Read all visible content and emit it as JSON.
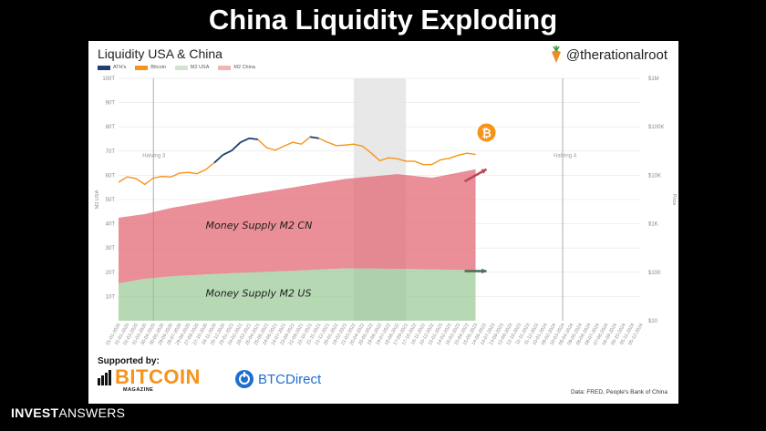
{
  "slide": {
    "title": "China Liquidity Exploding"
  },
  "header": {
    "handle": "@therationalroot"
  },
  "footer": {
    "supported_by": "Supported by:",
    "bitcoin_logo_main": "BITCOIN",
    "bitcoin_logo_sub": "MAGAZINE",
    "btcdirect_logo": "BTCDirect",
    "source": "Data: FRED, People's Bank of China",
    "brand_bold": "INVEST",
    "brand_light": "ANSWERS"
  },
  "colors": {
    "ath": "#1f3f73",
    "bitcoin": "#f7931a",
    "m2_usa": "#8fc48c",
    "m2_china": "#e2626f",
    "halving_shade": "#d9d9d9",
    "arrow_china": "#b5485d",
    "arrow_usa": "#4d6b57"
  },
  "chart_data": {
    "type": "area",
    "title": "Liquidity USA & China",
    "legend": [
      "ATH's",
      "Bitcoin",
      "M2 USA",
      "M2 China"
    ],
    "legend_position": "top-left",
    "ylabel_left": "M2 USA",
    "ylabel_right": "Price",
    "left_ticks": [
      "10T",
      "20T",
      "30T",
      "40T",
      "50T",
      "60T",
      "70T",
      "80T",
      "90T",
      "100T"
    ],
    "ylim_left": [
      0,
      100
    ],
    "right_ticks": [
      "$10",
      "$100",
      "$1K",
      "$10K",
      "$100K",
      "$1M"
    ],
    "ylim_right_log10": [
      1,
      6
    ],
    "grid": true,
    "x_dates": [
      "01-01-2020",
      "31-01-2020",
      "01-03-2020",
      "31-03-2020",
      "30-04-2020",
      "30-05-2020",
      "29-06-2020",
      "29-07-2020",
      "28-08-2020",
      "27-09-2020",
      "27-10-2020",
      "26-11-2020",
      "26-12-2020",
      "25-01-2021",
      "24-02-2021",
      "26-03-2021",
      "25-04-2021",
      "25-05-2021",
      "24-06-2021",
      "24-07-2021",
      "23-08-2021",
      "22-09-2021",
      "22-10-2021",
      "21-11-2021",
      "21-12-2021",
      "20-01-2022",
      "19-02-2022",
      "21-03-2022",
      "20-04-2022",
      "20-05-2022",
      "19-06-2022",
      "19-07-2022",
      "18-08-2022",
      "17-09-2022",
      "17-10-2022",
      "16-11-2022",
      "16-12-2022",
      "15-01-2023",
      "14-02-2023",
      "16-03-2023",
      "15-04-2023",
      "15-05-2023",
      "14-06-2023",
      "14-07-2023",
      "13-08-2023",
      "12-09-2023",
      "12-10-2023",
      "11-11-2023",
      "11-12-2023",
      "10-01-2024",
      "09-02-2024",
      "10-03-2024",
      "09-04-2024",
      "09-05-2024",
      "08-06-2024",
      "08-07-2024",
      "07-08-2024",
      "06-09-2024",
      "06-10-2024",
      "05-11-2024",
      "05-12-2024"
    ],
    "data_end_index": 41,
    "series": [
      {
        "name": "M2 USA",
        "index": [
          0,
          3,
          6,
          10,
          14,
          20,
          26,
          32,
          36,
          41
        ],
        "values": [
          15.4,
          17.3,
          18.3,
          19.1,
          19.8,
          20.6,
          21.6,
          21.4,
          21.2,
          20.8
        ]
      },
      {
        "name": "M2 China",
        "index": [
          0,
          3,
          6,
          10,
          14,
          20,
          26,
          32,
          36,
          41
        ],
        "values": [
          42.5,
          44,
          46.5,
          49,
          51.5,
          55,
          58.5,
          60.5,
          59,
          62.5
        ]
      },
      {
        "name": "Bitcoin",
        "index": [
          0,
          1,
          2,
          3,
          4,
          5,
          6,
          7,
          8,
          9,
          10,
          11,
          12,
          13,
          14,
          15,
          16,
          17,
          18,
          19,
          20,
          21,
          22,
          23,
          24,
          25,
          26,
          27,
          28,
          29,
          30,
          31,
          32,
          33,
          34,
          35,
          36,
          37,
          38,
          39,
          40,
          41
        ],
        "values": [
          7200,
          9300,
          8600,
          6500,
          8800,
          9500,
          9200,
          11100,
          11500,
          10800,
          13100,
          18200,
          26500,
          32500,
          48000,
          58000,
          55000,
          37000,
          33000,
          40000,
          48000,
          44000,
          62000,
          58000,
          48000,
          41000,
          42000,
          44000,
          40000,
          29000,
          20000,
          23000,
          22000,
          19500,
          19500,
          16500,
          16800,
          21000,
          22500,
          26000,
          28500,
          27000
        ]
      },
      {
        "name": "ATH's",
        "index": [
          11,
          12,
          13,
          14,
          15,
          16,
          22,
          23
        ],
        "values": [
          18200,
          26500,
          32500,
          48000,
          58000,
          55000,
          62000,
          58000
        ]
      }
    ],
    "annotations": [
      {
        "text": "Halving 3",
        "date_index": 4
      },
      {
        "text": "Halving 4",
        "date_index": 51
      }
    ],
    "overlays": [
      "Money Supply M2 CN",
      "Money Supply M2 US"
    ],
    "shaded_range_index": [
      27,
      33
    ]
  }
}
